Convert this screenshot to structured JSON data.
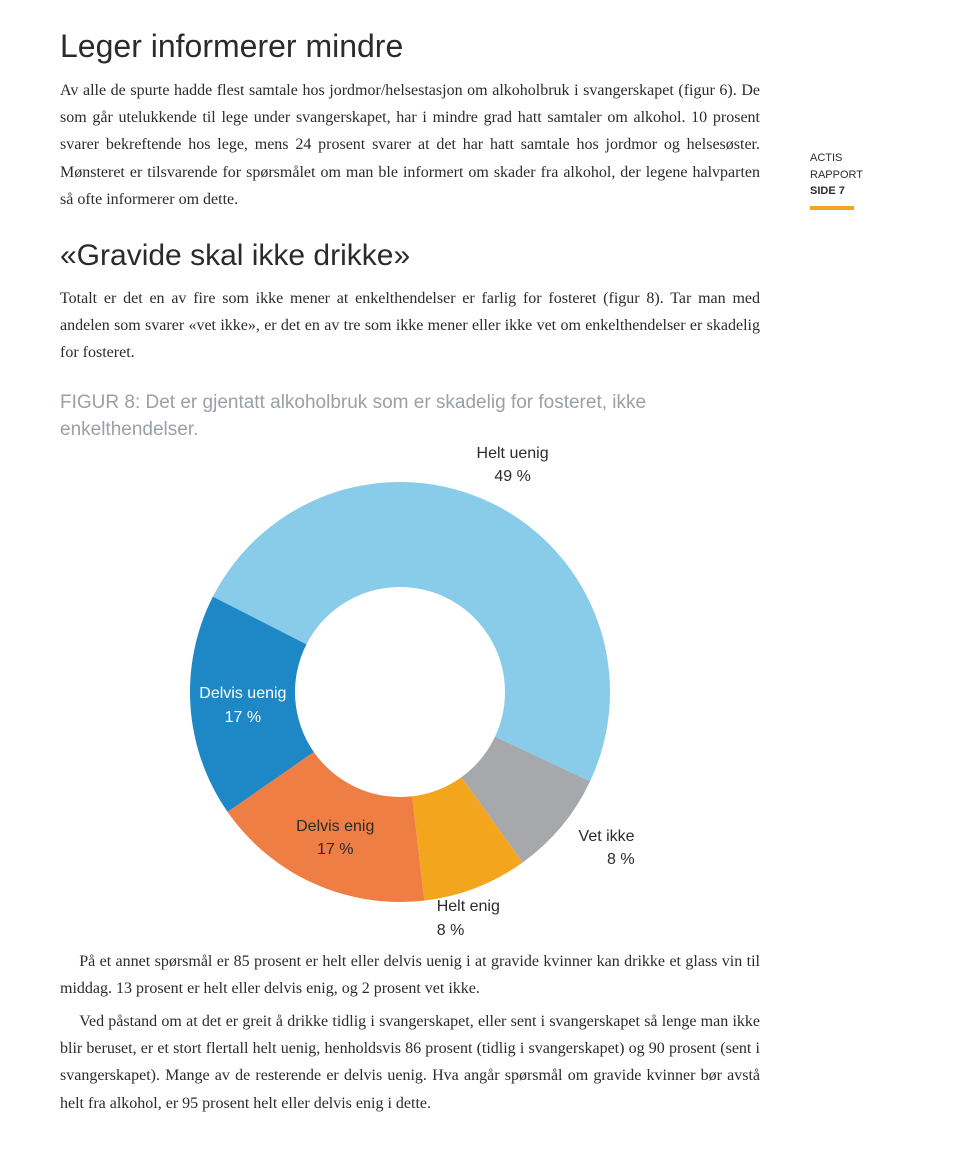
{
  "sidebar": {
    "line1": "ACTIS",
    "line2": "RAPPORT",
    "line3": "SIDE 7",
    "rule_color": "#f4a51e"
  },
  "section1": {
    "title": "Leger informerer mindre",
    "para": "Av alle de spurte hadde flest samtale hos jordmor/helsestasjon om alkoholbruk i svangerskapet (figur 6). De som går utelukkende til lege under svangerskapet, har i mindre grad hatt samtaler om alkohol. 10 prosent svarer bekreftende hos lege, mens 24 prosent svarer at det har hatt samtale hos jordmor og helsesøster. Mønsteret er tilsvarende for spørsmålet om man ble informert om skader fra alkohol, der legene halvparten så ofte informerer om dette."
  },
  "section2": {
    "title": "«Gravide skal ikke drikke»",
    "para": "Totalt er det en av fire som ikke mener at enkelthendelser er farlig for fosteret (figur 8). Tar man med andelen som svarer «vet ikke», er det en av tre som ikke mener eller ikke vet om enkelthendelser er skadelig for fosteret."
  },
  "figure8": {
    "caption": "FIGUR 8: Det er gjentatt alkoholbruk som er skadelig for fosteret, ikke enkelthendelser.",
    "chart": {
      "type": "donut",
      "outer_radius": 210,
      "inner_radius": 105,
      "background_color": "#ffffff",
      "label_fontsize": 16,
      "label_color": "#2b2b2b",
      "slices": [
        {
          "label": "Helt uenig",
          "value": 49,
          "color": "#88cce9"
        },
        {
          "label": "Vet ikke",
          "value": 8,
          "color": "#a6a8ab"
        },
        {
          "label": "Helt enig",
          "value": 8,
          "color": "#f4a51e"
        },
        {
          "label": "Delvis enig",
          "value": 17,
          "color": "#ef7e45"
        },
        {
          "label": "Delvis uenig",
          "value": 17,
          "color": "#1e88c7"
        }
      ],
      "start_angle_deg": -153
    }
  },
  "section3": {
    "para1": "På et annet spørsmål er 85 prosent er helt eller delvis uenig i at gravide kvinner kan drikke et glass vin til middag. 13 prosent er helt eller delvis enig, og 2 prosent vet ikke.",
    "para2": "Ved påstand om at det er greit å drikke tidlig i svangerskapet, eller sent i svangerskapet så lenge man ikke blir beruset, er et stort flertall helt uenig, henholdsvis 86 prosent (tidlig i svangerskapet) og 90 prosent (sent i svangerskapet). Mange av de resterende er delvis uenig. Hva angår spørsmål om gravide kvinner bør avstå helt fra alkohol, er 95 prosent helt eller delvis enig i dette."
  }
}
